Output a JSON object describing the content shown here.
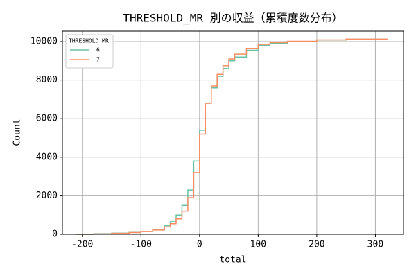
{
  "chart_data": {
    "type": "step",
    "title": "THRESHOLD_MR 別の収益（累積度数分布）",
    "xlabel": "total",
    "ylabel": "Count",
    "x": [
      -210,
      -180,
      -150,
      -120,
      -100,
      -80,
      -60,
      -50,
      -40,
      -30,
      -20,
      -10,
      0,
      10,
      20,
      30,
      40,
      50,
      60,
      80,
      100,
      120,
      150,
      200,
      250,
      320
    ],
    "series": [
      {
        "name": "6",
        "color": "#66c2a5",
        "values": [
          0,
          30,
          60,
          100,
          150,
          250,
          450,
          650,
          1000,
          1500,
          2300,
          3800,
          5400,
          6800,
          7600,
          8200,
          8600,
          9000,
          9200,
          9550,
          9800,
          9920,
          10000,
          10080,
          10130,
          10150
        ]
      },
      {
        "name": "7",
        "color": "#fc8d62",
        "values": [
          0,
          20,
          50,
          90,
          140,
          220,
          380,
          550,
          800,
          1200,
          1900,
          3200,
          5200,
          6800,
          7700,
          8300,
          8750,
          9100,
          9350,
          9650,
          9850,
          9950,
          10020,
          10090,
          10130,
          10150
        ]
      }
    ],
    "legend_title": "THRESHOLD_MR",
    "legend": "upper left",
    "xlim": [
      -234,
      348
    ],
    "ylim": [
      0,
      10540
    ],
    "xticks": [
      -200,
      -100,
      0,
      100,
      200,
      300
    ],
    "yticks": [
      0,
      2000,
      4000,
      6000,
      8000,
      10000
    ],
    "grid": true
  }
}
